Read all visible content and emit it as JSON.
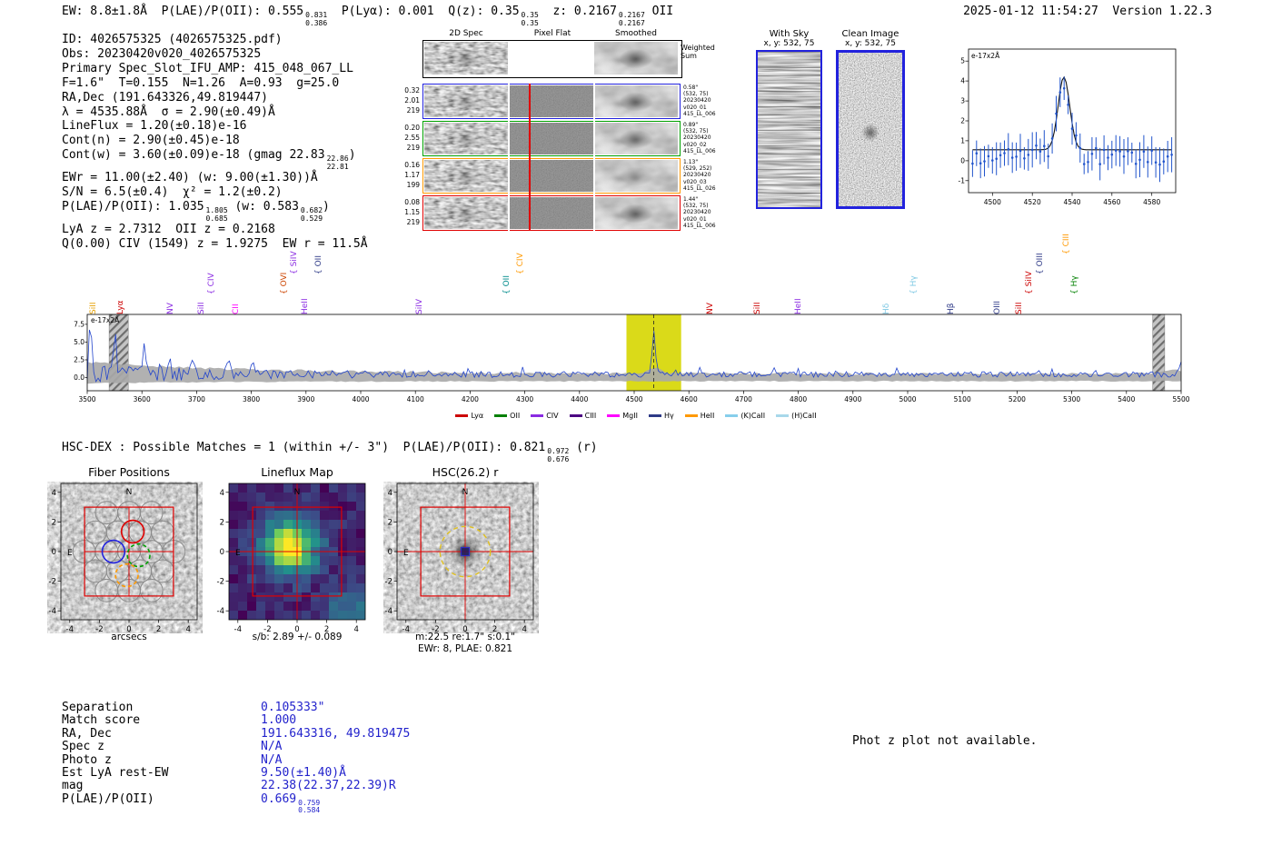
{
  "header": {
    "segments_left": [
      {
        "t": "EW: 8.8±1.8Å  P(LAE)/P(OII): 0.555"
      },
      {
        "frac": [
          "0.831",
          "0.386"
        ]
      },
      {
        "t": "  P(Lyα): 0.001  Q(z): 0.35"
      },
      {
        "frac": [
          "0.35",
          "0.35"
        ]
      },
      {
        "t": "  z: 0.2167"
      },
      {
        "frac": [
          "0.2167",
          "0.2167"
        ]
      },
      {
        "t": " OII"
      }
    ],
    "right": "2025-01-12 11:54:27  Version 1.22.3"
  },
  "info_lines": [
    [
      {
        "t": "ID: 4026575325 (4026575325.pdf)"
      }
    ],
    [
      {
        "t": "Obs: 20230420v020_4026575325"
      }
    ],
    [
      {
        "t": "Primary Spec_Slot_IFU_AMP: 415_048_067_LL"
      }
    ],
    [
      {
        "t": "F=1.6\"  T=0.155  N=1.26  A=0.93  g=25.0"
      }
    ],
    [
      {
        "t": "RA,Dec (191.643326,49.819447)"
      }
    ],
    [
      {
        "t": "λ = 4535.88Å  σ = 2.90(±0.49)Å"
      }
    ],
    [
      {
        "t": "LineFlux = 1.20(±0.18)e-16"
      }
    ],
    [
      {
        "t": "Cont(n) = 2.90(±0.45)e-18"
      }
    ],
    [
      {
        "t": "Cont(w) = 3.60(±0.09)e-18 (gmag 22.83"
      },
      {
        "frac": [
          "22.86",
          "22.81"
        ]
      },
      {
        "t": ")"
      }
    ],
    [
      {
        "t": "EWr = 11.00(±2.40) (w: 9.00(±1.30))Å"
      }
    ],
    [
      {
        "t": "S/N = 6.5(±0.4)  χ² = 1.2(±0.2)"
      }
    ],
    [
      {
        "t": "P(LAE)/P(OII): 1.035"
      },
      {
        "frac": [
          "1.805",
          "0.685"
        ]
      },
      {
        "t": " (w: 0.583"
      },
      {
        "frac": [
          "0.682",
          "0.529"
        ]
      },
      {
        "t": ")"
      }
    ],
    [
      {
        "t": "LyA z = 2.7312  OII z = 0.2168"
      }
    ],
    [
      {
        "t": "Q(0.00) CIV (1549) z = 1.9275  EW r = 11.5Å"
      }
    ]
  ],
  "spec2d": {
    "col_headers": [
      "2D Spec",
      "Pixel Flat",
      "Smoothed"
    ],
    "weighted_sum": [
      "Weighted",
      "Sum"
    ],
    "rows": [
      {
        "color": "#2222dd",
        "left": [
          "0.32",
          "2.01",
          "219"
        ],
        "right": [
          "0.58\"",
          "(532, 75)",
          "20230420",
          "v020_01",
          "415_LL_006"
        ]
      },
      {
        "color": "#00a000",
        "left": [
          "0.20",
          "2.55",
          "219"
        ],
        "right": [
          "0.89\"",
          "(532, 75)",
          "20230420",
          "v020_02",
          "415_LL_006"
        ]
      },
      {
        "color": "#ff9900",
        "left": [
          "0.16",
          "1.17",
          "199"
        ],
        "right": [
          "1.13\"",
          "(529, 252)",
          "20230420",
          "v020_03",
          "415_LL_026"
        ]
      },
      {
        "color": "#e00000",
        "left": [
          "0.08",
          "1.15",
          "219"
        ],
        "right": [
          "1.44\"",
          "(532, 75)",
          "20230420",
          "v020_01",
          "415_LL_006"
        ]
      }
    ]
  },
  "sky_panels": {
    "with_sky": {
      "title": "With Sky",
      "coords": "x, y: 532, 75"
    },
    "clean": {
      "title": "Clean Image",
      "coords": "x, y: 532, 75"
    }
  },
  "hsc_line": {
    "segments": [
      {
        "t": "HSC-DEX : Possible Matches = 1 (within +/- 3\")  P(LAE)/P(OII): 0.821"
      },
      {
        "frac": [
          "0.972",
          "0.676"
        ]
      },
      {
        "t": " (r)"
      }
    ]
  },
  "match_table": {
    "rows": [
      {
        "label": "Separation",
        "value": [
          {
            "t": "0.105333\""
          }
        ]
      },
      {
        "label": "Match score",
        "value": [
          {
            "t": "1.000"
          }
        ]
      },
      {
        "label": "RA, Dec",
        "value": [
          {
            "t": "191.643316, 49.819475"
          }
        ]
      },
      {
        "label": "Spec z",
        "value": [
          {
            "t": "N/A"
          }
        ]
      },
      {
        "label": "Photo z",
        "value": [
          {
            "t": "N/A"
          }
        ]
      },
      {
        "label": "Est LyA rest-EW",
        "value": [
          {
            "t": "9.50(±1.40)Å"
          }
        ]
      },
      {
        "label": "mag",
        "value": [
          {
            "t": "22.38(22.37,22.39)R"
          }
        ]
      },
      {
        "label": "P(LAE)/P(OII)",
        "value": [
          {
            "t": "0.669"
          },
          {
            "frac": [
              "0.759",
              "0.584"
            ]
          }
        ]
      }
    ]
  },
  "photz_note": "Phot z plot not available.",
  "chart_data": [
    {
      "id": "line_fit",
      "type": "scatter",
      "title": "e-17x2Å",
      "xlim": [
        4488,
        4592
      ],
      "ylim": [
        -1.6,
        5.6
      ],
      "x_ticks": [
        4500,
        4520,
        4540,
        4560,
        4580
      ],
      "y_ticks": [
        5,
        4,
        3,
        2,
        1,
        0,
        -1
      ],
      "fit": {
        "center": 4535.88,
        "sigma": 2.9,
        "amplitude": 3.65,
        "continuum": 0.55
      },
      "scatter": {
        "step": 2,
        "noise": 0.5,
        "errorbar_min": 0.45,
        "errorbar_extra": 0.45
      },
      "color": "#2255cc"
    },
    {
      "id": "full_spectrum",
      "type": "line",
      "unit_label": "e-17x2Å",
      "xlim": [
        3490,
        5510
      ],
      "ylim": [
        -1.85,
        8.9
      ],
      "x_ticks": [
        3500,
        3600,
        3700,
        3800,
        3900,
        4000,
        4100,
        4200,
        4300,
        4400,
        4500,
        4600,
        4700,
        4800,
        4900,
        5000,
        5100,
        5200,
        5300,
        5400,
        5500
      ],
      "y_ticks": [
        0.0,
        2.5,
        5.0,
        7.5
      ],
      "baseline": 0.45,
      "noise": {
        "floor": 0.5,
        "amp": 1.25,
        "decay": 260
      },
      "features": [
        {
          "wave": 3506,
          "peak": 7.0,
          "width": 2.5
        },
        {
          "wave": 3551,
          "peak": 6.0,
          "width": 2.8
        },
        {
          "wave": 3604,
          "peak": 4.6,
          "width": 2.6
        },
        {
          "wave": 3650,
          "peak": 2.6,
          "width": 2.4
        },
        {
          "wave": 3692,
          "peak": 2.2,
          "width": 2.5
        },
        {
          "wave": 3757,
          "peak": 2.4,
          "width": 2.6
        },
        {
          "wave": 3802,
          "peak": 1.8,
          "width": 2.6
        },
        {
          "wave": 4535.88,
          "peak": 6.4,
          "width": 3.1
        },
        {
          "wave": 5502,
          "peak": 2.0,
          "width": 4
        }
      ],
      "detection": {
        "wavelength": 4535.88,
        "highlight_halfwidth": 50
      },
      "masked_regions": [
        [
          3540,
          3575
        ],
        [
          5448,
          5470
        ]
      ],
      "emission_lines": [
        {
          "label": "SiII",
          "wave": 3512,
          "color": "#e69f00",
          "tier": 0
        },
        {
          "label": "Lyα",
          "wave": 3562,
          "color": "#cc0000",
          "tier": 0
        },
        {
          "label": "NV",
          "wave": 3652,
          "color": "#8a2be2",
          "tier": 0
        },
        {
          "label": "SiII",
          "wave": 3710,
          "color": "#8a2be2",
          "tier": 0
        },
        {
          "label": "{ CIV",
          "wave": 3728,
          "color": "#8a2be2",
          "tier": 1
        },
        {
          "label": "CII",
          "wave": 3772,
          "color": "#ff00ff",
          "tier": 0
        },
        {
          "label": "{ OVI",
          "wave": 3860,
          "color": "#cc4400",
          "tier": 1
        },
        {
          "label": "{ SiIV",
          "wave": 3878,
          "color": "#8a2be2",
          "tier": 2
        },
        {
          "label": "HeII",
          "wave": 3898,
          "color": "#8a2be2",
          "tier": 0
        },
        {
          "label": "{ OII",
          "wave": 3924,
          "color": "#2e3a87",
          "tier": 2
        },
        {
          "label": "SiIV",
          "wave": 4108,
          "color": "#8a2be2",
          "tier": 0
        },
        {
          "label": "{ OII",
          "wave": 4268,
          "color": "#008b8b",
          "tier": 1
        },
        {
          "label": "{ CIV",
          "wave": 4292,
          "color": "#ff9900",
          "tier": 2
        },
        {
          "label": "NV",
          "wave": 4640,
          "color": "#cc0000",
          "tier": 0
        },
        {
          "label": "SiII",
          "wave": 4726,
          "color": "#cc0000",
          "tier": 0
        },
        {
          "label": "HeII",
          "wave": 4800,
          "color": "#8a2be2",
          "tier": 0
        },
        {
          "label": "Hδ",
          "wave": 4962,
          "color": "#7ec8e3",
          "tier": 0
        },
        {
          "label": "{ Hγ",
          "wave": 5012,
          "color": "#7ec8e3",
          "tier": 1
        },
        {
          "label": "Hβ",
          "wave": 5080,
          "color": "#2e3a87",
          "tier": 0
        },
        {
          "label": "OIII",
          "wave": 5165,
          "color": "#2e3a87",
          "tier": 0
        },
        {
          "label": "SiII",
          "wave": 5205,
          "color": "#cc0000",
          "tier": 0
        },
        {
          "label": "{ SiIV",
          "wave": 5222,
          "color": "#cc0000",
          "tier": 1
        },
        {
          "label": "{ OIII",
          "wave": 5242,
          "color": "#2e3a87",
          "tier": 2
        },
        {
          "label": "{ CIII",
          "wave": 5290,
          "color": "#ff9900",
          "tier": 3
        },
        {
          "label": "{ Hγ",
          "wave": 5306,
          "color": "#008000",
          "tier": 1
        }
      ],
      "legend": [
        {
          "label": "Lyα",
          "color": "#cc0000"
        },
        {
          "label": "OII",
          "color": "#008000"
        },
        {
          "label": "CIV",
          "color": "#8a2be2"
        },
        {
          "label": "CIII",
          "color": "#4b0082"
        },
        {
          "label": "MgII",
          "color": "#ff00ff"
        },
        {
          "label": "Hγ",
          "color": "#2e3a87"
        },
        {
          "label": "HeII",
          "color": "#ff9900"
        },
        {
          "label": "(K)CaII",
          "color": "#87ceeb"
        },
        {
          "label": "(H)CaII",
          "color": "#a8d8ea"
        }
      ]
    },
    {
      "id": "cutouts",
      "type": "images",
      "axis_range": [
        -4.6,
        4.6
      ],
      "box_arcsec": 3,
      "panels": [
        {
          "title": "Fiber Positions",
          "xlabel": "arcsecs",
          "ticks": [
            -4,
            -2,
            0,
            2,
            4
          ],
          "compass": [
            "N",
            "E"
          ],
          "fibers": {
            "radius": 0.758,
            "rows": [
              3,
              4,
              5,
              4,
              3
            ],
            "pitch": 1.515,
            "highlight": [
              {
                "color": "#e00000",
                "x": 0.25,
                "y": 1.35,
                "dash": false
              },
              {
                "color": "#2222dd",
                "x": -1.05,
                "y": 0.0,
                "dash": false
              },
              {
                "color": "#00a000",
                "x": 0.65,
                "y": -0.25,
                "dash": true
              },
              {
                "color": "#ff9900",
                "x": -0.15,
                "y": -1.6,
                "dash": true
              }
            ]
          }
        },
        {
          "title": "Lineflux Map",
          "caption": "s/b: 2.89 +/- 0.089",
          "ticks": [
            -4,
            -2,
            0,
            2,
            4
          ],
          "compass": [
            "N",
            "E"
          ],
          "blob": {
            "x": -0.5,
            "y": 0.3,
            "sigma": 1.25
          }
        },
        {
          "title": "HSC(26.2) r",
          "caption": "m:22.5 re:1.7\" s:0.1\"",
          "caption2": "EWr: 8, PLAE: 0.821",
          "ticks": [
            -4,
            -2,
            0,
            2,
            4
          ],
          "compass": [
            "N",
            "E"
          ],
          "aperture": {
            "radius": 1.7,
            "color": "#e0c020"
          }
        }
      ]
    }
  ]
}
